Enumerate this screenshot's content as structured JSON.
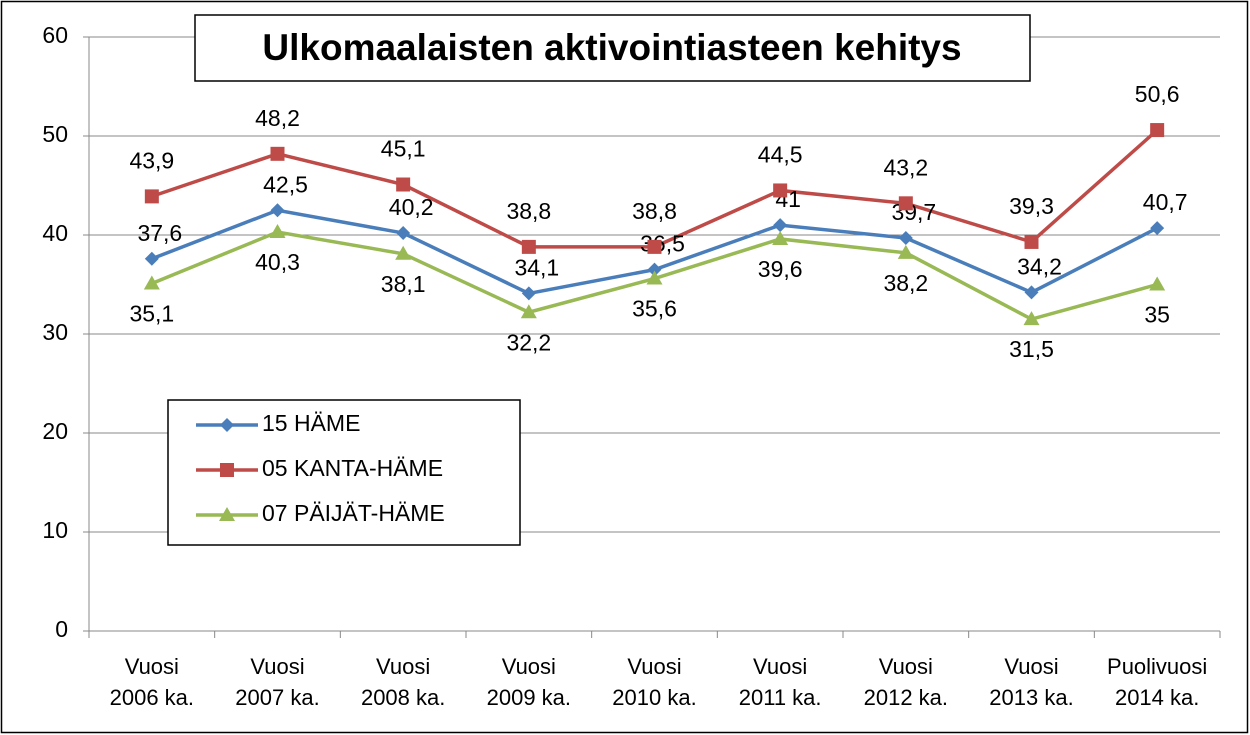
{
  "chart_data": {
    "type": "line",
    "title": "Ulkomaalaisten aktivointiasteen kehitys",
    "categories": [
      "Vuosi\n2006 ka.",
      "Vuosi\n2007 ka.",
      "Vuosi\n2008 ka.",
      "Vuosi\n2009 ka.",
      "Vuosi\n2010 ka.",
      "Vuosi\n2011 ka.",
      "Vuosi\n2012 ka.",
      "Vuosi\n2013 ka.",
      "Puolivuosi\n2014 ka."
    ],
    "series": [
      {
        "name": "15 HÄME",
        "color": "#4a7ebb",
        "marker": "diamond",
        "values": [
          37.6,
          42.5,
          40.2,
          34.1,
          36.5,
          41,
          39.7,
          34.2,
          40.7
        ],
        "value_labels": [
          "37,6",
          "42,5",
          "40,2",
          "34,1",
          "36,5",
          "41",
          "39,7",
          "34,2",
          "40,7"
        ]
      },
      {
        "name": "05 KANTA-HÄME",
        "color": "#be4b48",
        "marker": "square",
        "values": [
          43.9,
          48.2,
          45.1,
          38.8,
          38.8,
          44.5,
          43.2,
          39.3,
          50.6
        ],
        "value_labels": [
          "43,9",
          "48,2",
          "45,1",
          "38,8",
          "38,8",
          "44,5",
          "43,2",
          "39,3",
          "50,6"
        ]
      },
      {
        "name": "07 PÄIJÄT-HÄME",
        "color": "#98b954",
        "marker": "triangle",
        "values": [
          35.1,
          40.3,
          38.1,
          32.2,
          35.6,
          39.6,
          38.2,
          31.5,
          35
        ],
        "value_labels": [
          "35,1",
          "40,3",
          "38,1",
          "32,2",
          "35,6",
          "39,6",
          "38,2",
          "31,5",
          "35"
        ]
      }
    ],
    "ylim": [
      0,
      60
    ],
    "yticks": [
      0,
      10,
      20,
      30,
      40,
      50,
      60
    ],
    "grid": true,
    "legend": "left"
  }
}
